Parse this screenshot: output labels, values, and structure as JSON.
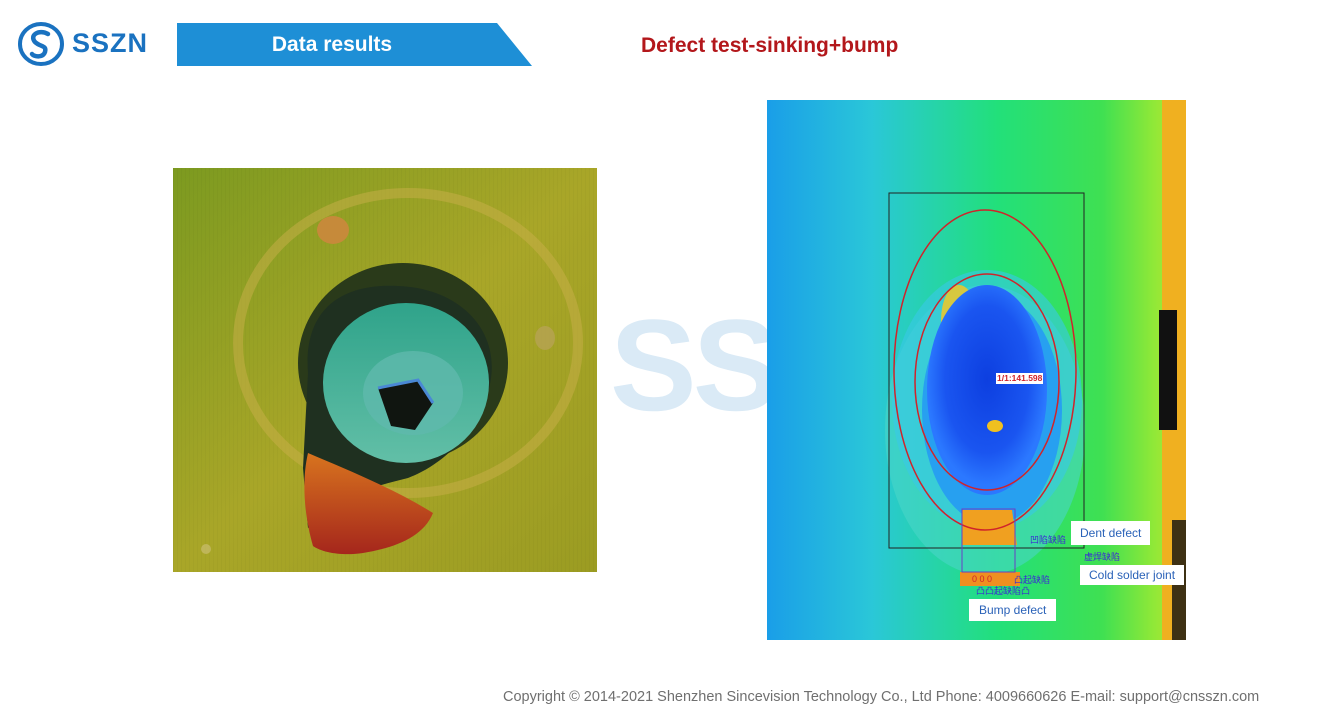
{
  "brand": {
    "name": "SSZN",
    "icon": "sszn-logo-icon",
    "color": "#1a72c0"
  },
  "header": {
    "section_title": "Data results",
    "banner_color": "#1e8fd6"
  },
  "page": {
    "title": "Defect test-sinking+bump",
    "title_color": "#b3171b"
  },
  "watermark": {
    "text": "SS"
  },
  "right_image": {
    "measurement": "1/1:141.598",
    "tags": {
      "dent": "凹陷缺陷",
      "cold": "虚焊缺陷",
      "bump": "凸起缺陷",
      "bump2": "凸凸起缺陷凸",
      "small": "0 0 0"
    },
    "callouts": {
      "dent": "Dent defect",
      "cold": "Cold solder joint",
      "bump": "Bump defect"
    }
  },
  "footer": {
    "text": "Copyright © 2014-2021 Shenzhen Sincevision Technology Co., Ltd  Phone: 4009660626  E-mail: support@cnsszn.com"
  }
}
